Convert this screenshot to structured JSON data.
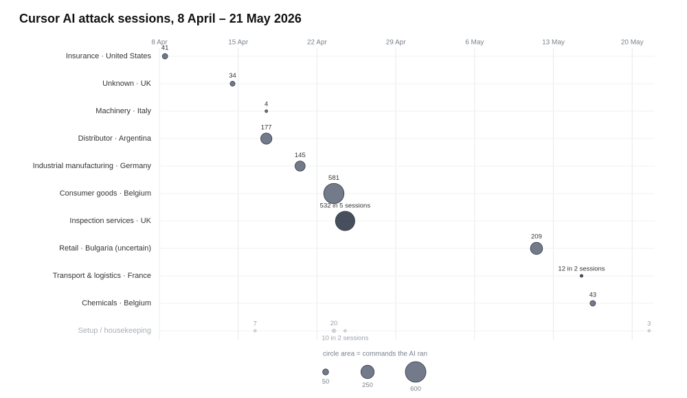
{
  "chart_data": {
    "type": "bubble",
    "title": "Cursor AI attack sessions, 8 April – 21 May 2026",
    "xlim": [
      "2026-04-08",
      "2026-05-22"
    ],
    "xticks": [
      {
        "value": "2026-04-08",
        "label": "8 Apr"
      },
      {
        "value": "2026-04-15",
        "label": "15 Apr"
      },
      {
        "value": "2026-04-22",
        "label": "22 Apr"
      },
      {
        "value": "2026-04-29",
        "label": "29 Apr"
      },
      {
        "value": "2026-05-06",
        "label": "6 May"
      },
      {
        "value": "2026-05-13",
        "label": "13 May"
      },
      {
        "value": "2026-05-20",
        "label": "20 May"
      }
    ],
    "grid": true,
    "rows": [
      {
        "label": "Insurance · United States",
        "color": "#5b6475",
        "points": [
          {
            "x": "2026-04-08",
            "value": 41
          }
        ]
      },
      {
        "label": "Unknown · UK",
        "color": "#5b6475",
        "points": [
          {
            "x": "2026-04-14",
            "value": 34
          }
        ]
      },
      {
        "label": "Machinery · Italy",
        "color": "#5b6475",
        "points": [
          {
            "x": "2026-04-17",
            "value": 4
          }
        ]
      },
      {
        "label": "Distributor · Argentina",
        "color": "#5b6475",
        "points": [
          {
            "x": "2026-04-17",
            "value": 177
          }
        ]
      },
      {
        "label": "Industrial manufacturing · Germany",
        "color": "#5b6475",
        "points": [
          {
            "x": "2026-04-20",
            "value": 145
          }
        ]
      },
      {
        "label": "Consumer goods · Belgium",
        "color": "#5b6475",
        "points": [
          {
            "x": "2026-04-23",
            "value": 581
          }
        ]
      },
      {
        "label": "Inspection services · UK",
        "color": "#27303f",
        "points": [
          {
            "x": "2026-04-24",
            "value": 532,
            "value_label": "532 in 5 sessions"
          }
        ]
      },
      {
        "label": "Retail · Bulgaria (uncertain)",
        "color": "#5b6475",
        "points": [
          {
            "x": "2026-05-11",
            "value": 209
          }
        ]
      },
      {
        "label": "Transport & logistics · France",
        "color": "#2f3848",
        "points": [
          {
            "x": "2026-05-15",
            "value": 12,
            "value_label": "12 in 2 sessions"
          }
        ]
      },
      {
        "label": "Chemicals · Belgium",
        "color": "#5b6475",
        "points": [
          {
            "x": "2026-05-16",
            "value": 43
          }
        ]
      },
      {
        "label": "Setup / housekeeping",
        "color": "#c9ccd1",
        "muted": true,
        "points": [
          {
            "x": "2026-04-16",
            "value": 7
          },
          {
            "x": "2026-04-23",
            "value": 20
          },
          {
            "x": "2026-04-24",
            "value": 10,
            "value_label": "10 in 2 sessions",
            "label_position": "below"
          },
          {
            "x": "2026-05-21",
            "value": 3
          }
        ]
      }
    ],
    "size_legend": {
      "title": "circle area = commands the AI ran",
      "values": [
        50,
        250,
        600
      ]
    }
  }
}
